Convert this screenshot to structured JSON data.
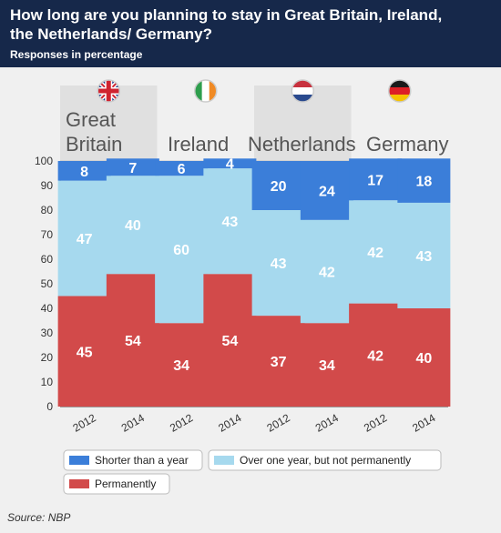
{
  "header": {
    "title_line1": "How long are you planning to stay in Great Britain, Ireland,",
    "title_line2": "the Netherlands/ Germany?",
    "subtitle": "Responses in percentage"
  },
  "source": "Source: NBP",
  "chart_data": {
    "type": "bar",
    "stacked": true,
    "ylim": [
      0,
      100
    ],
    "yticks": [
      0,
      10,
      20,
      30,
      40,
      50,
      60,
      70,
      80,
      90,
      100
    ],
    "grid": true,
    "legend_position": "bottom",
    "groups": [
      {
        "country": "Great Britain",
        "label_lines": [
          "Great",
          "Britain"
        ],
        "flag": "uk-flag-icon"
      },
      {
        "country": "Ireland",
        "label_lines": [
          "Ireland"
        ],
        "flag": "ireland-flag-icon"
      },
      {
        "country": "Netherlands",
        "label_lines": [
          "Netherlands"
        ],
        "flag": "netherlands-flag-icon"
      },
      {
        "country": "Germany",
        "label_lines": [
          "Germany"
        ],
        "flag": "germany-flag-icon"
      }
    ],
    "categories": [
      "2012",
      "2014",
      "2012",
      "2014",
      "2012",
      "2014",
      "2012",
      "2014"
    ],
    "series": [
      {
        "name": "Permanently",
        "color": "#d24a4a",
        "values": [
          45,
          54,
          34,
          54,
          37,
          34,
          42,
          40
        ]
      },
      {
        "name": "Over one year, but not permanently",
        "color": "#a6d9ee",
        "values": [
          47,
          40,
          60,
          43,
          43,
          42,
          42,
          43
        ]
      },
      {
        "name": "Shorter than a year",
        "color": "#3b7ed9",
        "values": [
          8,
          7,
          6,
          4,
          20,
          24,
          17,
          18
        ]
      }
    ],
    "legend": [
      "Shorter than a year",
      "Over one year, but not permanently",
      "Permanently"
    ]
  }
}
